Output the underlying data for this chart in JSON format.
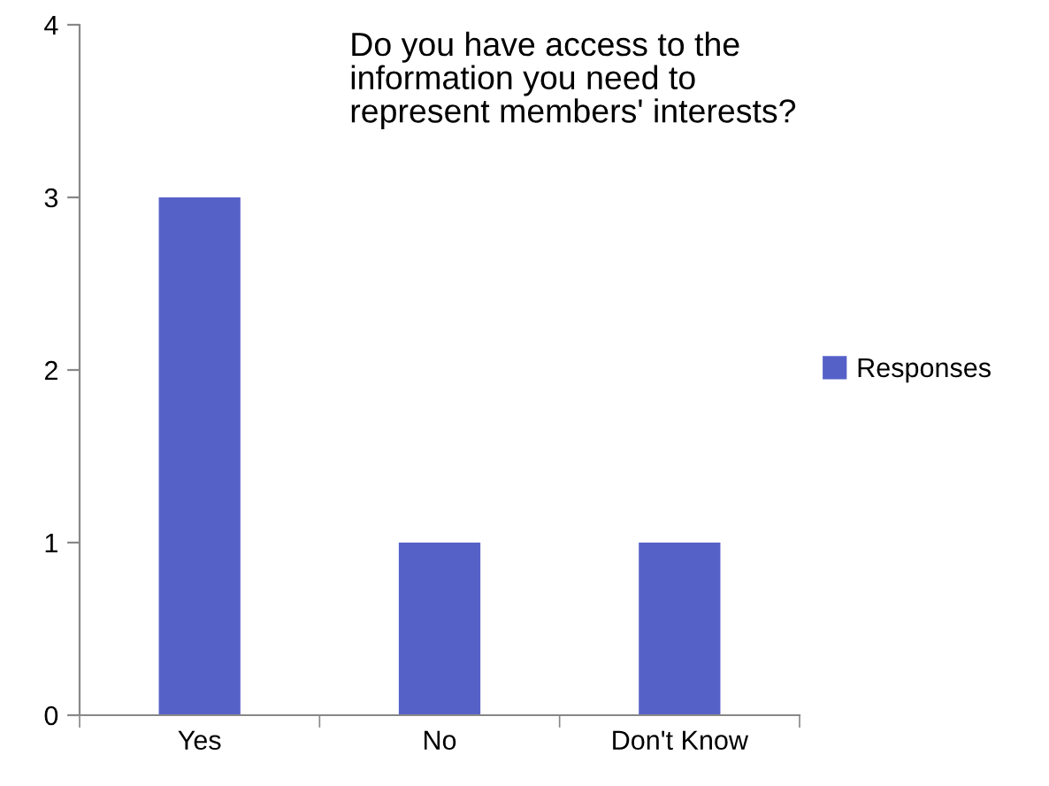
{
  "chart_data": {
    "type": "bar",
    "title": "Do you have access to the\ninformation you need to\nrepresent members' interests?",
    "categories": [
      "Yes",
      "No",
      "Don't Know"
    ],
    "series": [
      {
        "name": "Responses",
        "color": "#5661c8",
        "values": [
          3,
          1,
          1
        ]
      }
    ],
    "ylim": [
      0,
      4
    ],
    "yticks": [
      0,
      1,
      2,
      3,
      4
    ],
    "grid": false,
    "legend": "right"
  }
}
